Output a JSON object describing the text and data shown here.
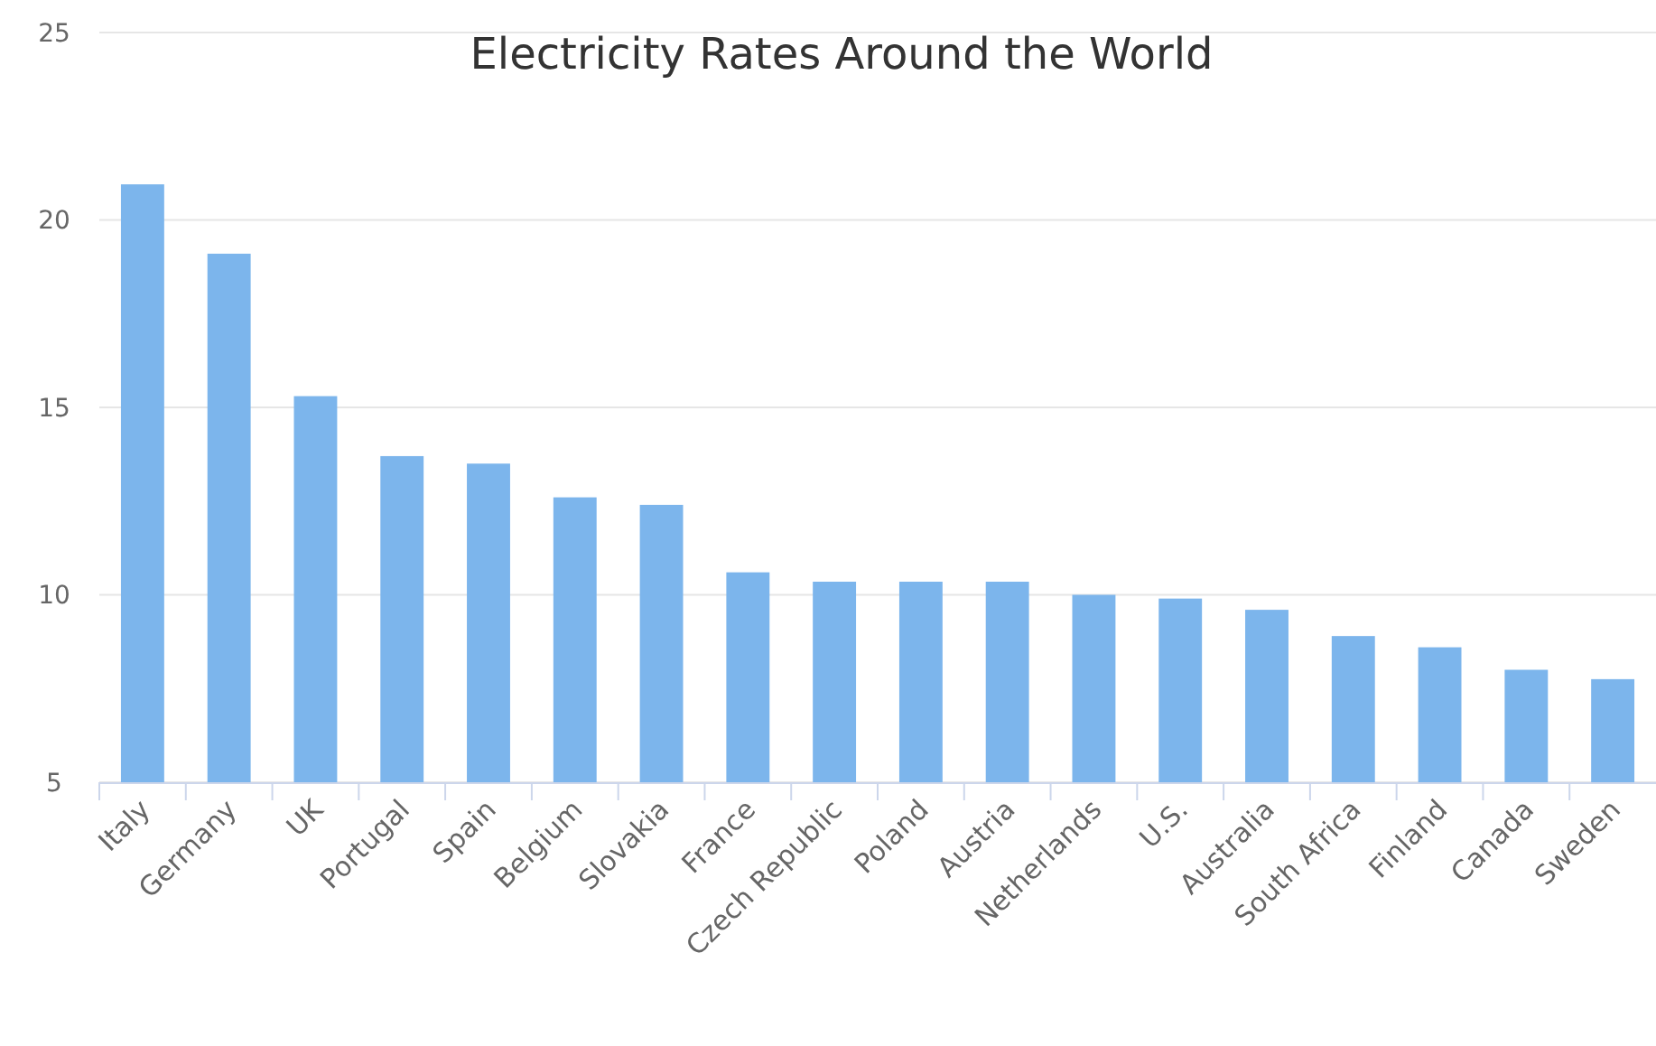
{
  "chart_data": {
    "type": "bar",
    "title": "Electricity Rates Around the World",
    "categories": [
      "Italy",
      "Germany",
      "UK",
      "Portugal",
      "Spain",
      "Belgium",
      "Slovakia",
      "France",
      "Czech Republic",
      "Poland",
      "Austria",
      "Netherlands",
      "U.S.",
      "Australia",
      "South Africa",
      "Finland",
      "Canada",
      "Sweden"
    ],
    "values": [
      20.95,
      19.1,
      15.3,
      13.7,
      13.5,
      12.6,
      12.4,
      10.6,
      10.35,
      10.35,
      10.35,
      10.0,
      9.9,
      9.6,
      8.9,
      8.6,
      8.0,
      7.75
    ],
    "color": "#7cb5ec",
    "ylim": [
      5,
      25
    ],
    "yticks": [
      5,
      10,
      15,
      20,
      25
    ],
    "grid": "y"
  }
}
